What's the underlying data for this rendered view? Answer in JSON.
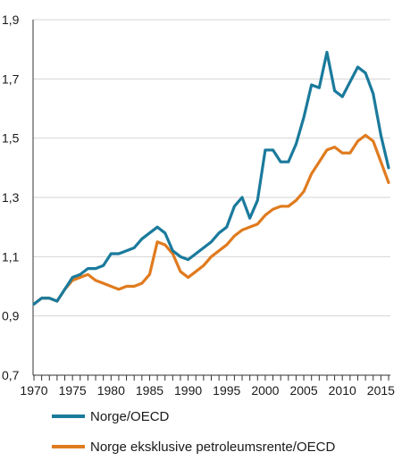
{
  "chart_data": {
    "type": "line",
    "title": "",
    "xlabel": "",
    "ylabel": "",
    "xlim": [
      1970,
      2016
    ],
    "ylim": [
      0.7,
      1.9
    ],
    "x_ticks": [
      1970,
      1975,
      1980,
      1985,
      1990,
      1995,
      2000,
      2005,
      2010,
      2015
    ],
    "x_tick_labels": [
      "1970",
      "1975",
      "1980",
      "1985",
      "1990",
      "1995",
      "2000",
      "2005",
      "2010",
      "2015"
    ],
    "y_ticks": [
      0.7,
      0.9,
      1.1,
      1.3,
      1.5,
      1.7,
      1.9
    ],
    "y_tick_labels": [
      "0,7",
      "0,9",
      "1,1",
      "1,3",
      "1,5",
      "1,7",
      "1,9"
    ],
    "grid": "horizontal",
    "legend_position": "bottom",
    "x": [
      1970,
      1971,
      1972,
      1973,
      1974,
      1975,
      1976,
      1977,
      1978,
      1979,
      1980,
      1981,
      1982,
      1983,
      1984,
      1985,
      1986,
      1987,
      1988,
      1989,
      1990,
      1991,
      1992,
      1993,
      1994,
      1995,
      1996,
      1997,
      1998,
      1999,
      2000,
      2001,
      2002,
      2003,
      2004,
      2005,
      2006,
      2007,
      2008,
      2009,
      2010,
      2011,
      2012,
      2013,
      2014,
      2015,
      2016
    ],
    "series": [
      {
        "name": "Norge/OECD",
        "color": "#1a7a9c",
        "values": [
          0.94,
          0.96,
          0.96,
          0.95,
          0.99,
          1.03,
          1.04,
          1.06,
          1.06,
          1.07,
          1.11,
          1.11,
          1.12,
          1.13,
          1.16,
          1.18,
          1.2,
          1.18,
          1.12,
          1.1,
          1.09,
          1.11,
          1.13,
          1.15,
          1.18,
          1.2,
          1.27,
          1.3,
          1.23,
          1.29,
          1.46,
          1.46,
          1.42,
          1.42,
          1.48,
          1.57,
          1.68,
          1.67,
          1.79,
          1.66,
          1.64,
          1.69,
          1.74,
          1.72,
          1.65,
          1.51,
          1.4
        ]
      },
      {
        "name": "Norge eksklusive petroleumsrente/OECD",
        "color": "#e07b1f",
        "values": [
          0.94,
          0.96,
          0.96,
          0.95,
          0.99,
          1.02,
          1.03,
          1.04,
          1.02,
          1.01,
          1.0,
          0.99,
          1.0,
          1.0,
          1.01,
          1.04,
          1.15,
          1.14,
          1.11,
          1.05,
          1.03,
          1.05,
          1.07,
          1.1,
          1.12,
          1.14,
          1.17,
          1.19,
          1.2,
          1.21,
          1.24,
          1.26,
          1.27,
          1.27,
          1.29,
          1.32,
          1.38,
          1.42,
          1.46,
          1.47,
          1.45,
          1.45,
          1.49,
          1.51,
          1.49,
          1.42,
          1.35
        ]
      }
    ]
  }
}
